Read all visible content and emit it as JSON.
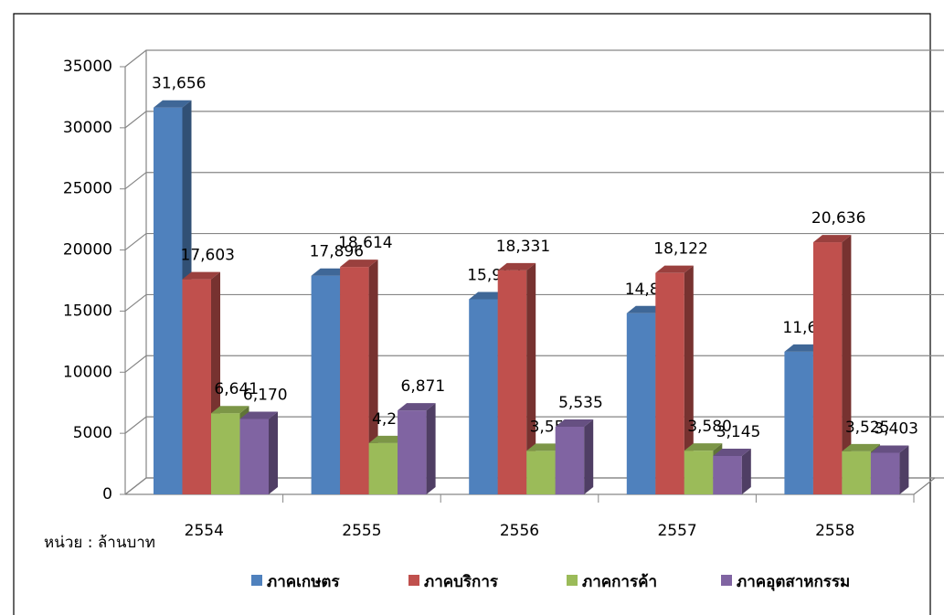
{
  "chart_data": {
    "type": "bar3d",
    "categories": [
      "2554",
      "2555",
      "2556",
      "2557",
      "2558"
    ],
    "series": [
      {
        "name": "ภาคเกษตร",
        "color": "#4f81bd",
        "values": [
          31656,
          17896,
          15967,
          14826,
          11673
        ],
        "value_labels": [
          "31,656",
          "17,896",
          "15,967",
          "14,826",
          "11,673"
        ]
      },
      {
        "name": "ภาคบริการ",
        "color": "#c0504d",
        "values": [
          17603,
          18614,
          18331,
          18122,
          20636
        ],
        "value_labels": [
          "17,603",
          "18,614",
          "18,331",
          "18,122",
          "20,636"
        ]
      },
      {
        "name": "ภาคการค้า",
        "color": "#9bbb59",
        "values": [
          6641,
          4202,
          3559,
          3580,
          3525
        ],
        "value_labels": [
          "6,641",
          "4,202",
          "3,559",
          "3,580",
          "3,525"
        ]
      },
      {
        "name": "ภาคอุตสาหกรรม",
        "color": "#8064a2",
        "values": [
          6170,
          6871,
          5535,
          3145,
          3403
        ],
        "value_labels": [
          "6,170",
          "6,871",
          "5,535",
          "3,145",
          "3,403"
        ]
      }
    ],
    "ylim": [
      0,
      35000
    ],
    "yticks": [
      0,
      5000,
      10000,
      15000,
      20000,
      25000,
      30000,
      35000
    ],
    "grid": true,
    "legend": "bottom",
    "annotation": "หน่วย : ล้านบาท"
  }
}
